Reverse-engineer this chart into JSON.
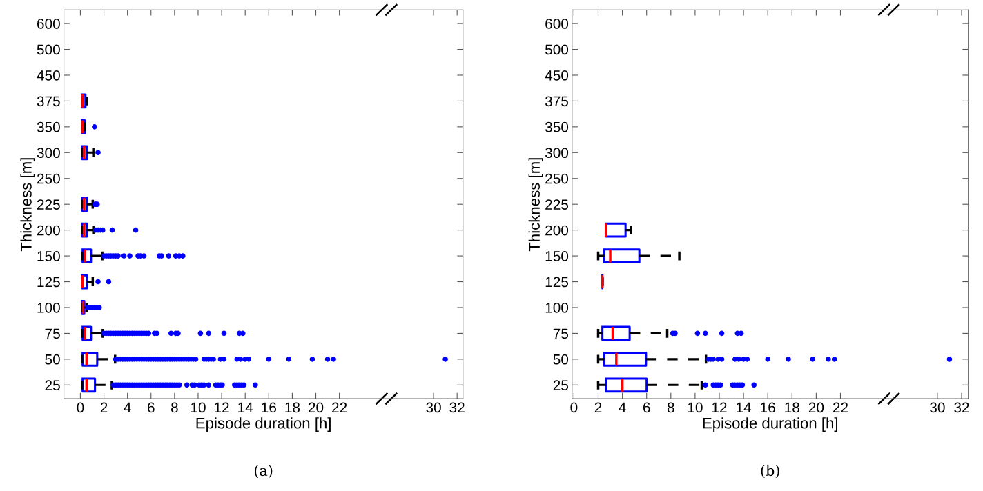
{
  "chart_data": [
    {
      "type": "box",
      "orientation": "horizontal",
      "title": "(a)",
      "xlabel": "Episode duration [h]",
      "ylabel": "Thickness [m]",
      "categories": [
        "600",
        "500",
        "450",
        "375",
        "350",
        "300",
        "250",
        "225",
        "200",
        "150",
        "125",
        "100",
        "75",
        "50",
        "25"
      ],
      "xlim": [
        -1.4,
        32.5
      ],
      "xticks": [
        0,
        2,
        4,
        6,
        8,
        10,
        12,
        14,
        16,
        18,
        20,
        22,
        30,
        32
      ],
      "marker": "circle",
      "line_style": "dashed",
      "series": [
        {
          "color": "#0000ff",
          "boxes": [
            null,
            null,
            null,
            {
              "low": 0.14,
              "q1": 0.14,
              "median": 0.2,
              "q3": 0.43,
              "high": 0.57
            },
            {
              "low": 0.14,
              "q1": 0.14,
              "median": 0.2,
              "q3": 0.38,
              "high": 0.38,
              "outliers": [
                1.2
              ]
            },
            {
              "low": 0.14,
              "q1": 0.14,
              "median": 0.33,
              "q3": 0.57,
              "high": 1.1,
              "outliers": [
                1.5
              ]
            },
            null,
            {
              "low": 0.14,
              "q1": 0.14,
              "median": 0.33,
              "q3": 0.57,
              "high": 1.05,
              "outliers": [
                1.24,
                1.33,
                1.43
              ]
            },
            {
              "low": 0.14,
              "q1": 0.14,
              "median": 0.33,
              "q3": 0.57,
              "high": 1.1,
              "outliers": [
                1.3,
                1.5,
                1.7,
                1.9,
                2.7,
                4.7
              ]
            },
            {
              "low": 0.14,
              "q1": 0.19,
              "median": 0.38,
              "q3": 0.9,
              "high": 1.86,
              "outliers": [
                2.0,
                2.2,
                2.4,
                2.6,
                2.8,
                3.0,
                3.2,
                3.7,
                4.2,
                4.9,
                5.1,
                5.4,
                6.7,
                6.9,
                7.5,
                8.1,
                8.4,
                8.7
              ]
            },
            {
              "low": 0.14,
              "q1": 0.14,
              "median": 0.19,
              "q3": 0.57,
              "high": 1.05,
              "outliers": [
                1.5,
                2.4
              ]
            },
            {
              "low": 0.14,
              "q1": 0.14,
              "median": 0.24,
              "q3": 0.33,
              "high": 0.52,
              "outliers": [
                0.6,
                0.8,
                1.0,
                1.2,
                1.4,
                1.6
              ]
            },
            {
              "low": 0.14,
              "q1": 0.19,
              "median": 0.38,
              "q3": 0.9,
              "high": 1.9,
              "outliers": [
                2.0,
                2.2,
                2.4,
                2.6,
                2.8,
                3.0,
                3.2,
                3.4,
                3.6,
                3.8,
                4.0,
                4.2,
                4.4,
                4.6,
                4.8,
                5.0,
                5.2,
                5.4,
                5.6,
                5.8,
                6.3,
                6.5,
                7.7,
                8.1,
                8.3,
                10.2,
                10.9,
                12.2,
                13.5,
                13.8
              ]
            },
            {
              "low": 0.14,
              "q1": 0.19,
              "median": 0.52,
              "q3": 1.43,
              "high": 2.95,
              "outliers": [
                3.0,
                3.2,
                3.4,
                3.6,
                3.8,
                4.0,
                4.2,
                4.4,
                4.6,
                4.8,
                5.0,
                5.2,
                5.4,
                5.6,
                5.8,
                6.0,
                6.2,
                6.4,
                6.6,
                6.8,
                7.0,
                7.2,
                7.4,
                7.6,
                7.8,
                8.0,
                8.2,
                8.4,
                8.6,
                8.8,
                9.0,
                9.2,
                9.4,
                9.6,
                9.8,
                10.5,
                10.7,
                10.9,
                11.1,
                11.3,
                11.9,
                12.2,
                13.3,
                13.6,
                14.0,
                14.3,
                16.0,
                17.7,
                19.7,
                21.0,
                21.5,
                31.0
              ]
            },
            {
              "low": 0.14,
              "q1": 0.19,
              "median": 0.52,
              "q3": 1.24,
              "high": 2.67,
              "outliers": [
                2.8,
                3.0,
                3.2,
                3.4,
                3.6,
                3.8,
                4.0,
                4.2,
                4.4,
                4.6,
                4.8,
                5.0,
                5.2,
                5.4,
                5.6,
                5.8,
                6.0,
                6.2,
                6.4,
                6.6,
                6.8,
                7.0,
                7.2,
                7.4,
                7.6,
                7.8,
                8.0,
                8.2,
                8.4,
                9.05,
                9.5,
                9.7,
                10.1,
                10.3,
                10.5,
                10.9,
                11.5,
                11.7,
                11.9,
                12.05,
                13.1,
                13.3,
                13.5,
                13.7,
                13.9,
                14.86
              ]
            }
          ]
        }
      ]
    },
    {
      "type": "box",
      "orientation": "horizontal",
      "title": "(b)",
      "xlabel": "Episode duration [h]",
      "ylabel": "Thickness [m]",
      "categories": [
        "600",
        "500",
        "450",
        "375",
        "350",
        "300",
        "250",
        "225",
        "200",
        "150",
        "125",
        "100",
        "75",
        "50",
        "25"
      ],
      "xlim": [
        -0.15,
        32.55
      ],
      "xticks": [
        0,
        2,
        4,
        6,
        8,
        10,
        12,
        14,
        16,
        18,
        20,
        22,
        30,
        32
      ],
      "marker": "circle",
      "line_style": "dashed",
      "series": [
        {
          "color": "#0000ff",
          "boxes": [
            null,
            null,
            null,
            null,
            null,
            null,
            null,
            null,
            {
              "low": 2.65,
              "q1": 2.65,
              "median": 2.65,
              "q3": 4.26,
              "high": 4.7
            },
            {
              "low": 2.0,
              "q1": 2.5,
              "median": 3.0,
              "q3": 5.4,
              "high": 8.7
            },
            {
              "low": 2.35,
              "q1": 2.35,
              "median": 2.35,
              "q3": 2.35,
              "high": 2.35
            },
            null,
            {
              "low": 2.0,
              "q1": 2.35,
              "median": 3.2,
              "q3": 4.6,
              "high": 7.7,
              "outliers": [
                8.15,
                8.35,
                10.2,
                10.85,
                12.2,
                13.5,
                13.8
              ]
            },
            {
              "low": 2.0,
              "q1": 2.5,
              "median": 3.5,
              "q3": 5.95,
              "high": 10.9,
              "outliers": [
                11.1,
                11.3,
                11.5,
                11.9,
                12.2,
                13.3,
                13.6,
                14.0,
                14.3,
                16.0,
                17.7,
                19.7,
                21.0,
                21.5,
                31.0
              ]
            },
            {
              "low": 2.0,
              "q1": 2.65,
              "median": 4.0,
              "q3": 6.0,
              "high": 10.55,
              "outliers": [
                10.85,
                11.5,
                11.7,
                11.9,
                12.1,
                13.1,
                13.3,
                13.5,
                13.7,
                13.9,
                14.86
              ]
            }
          ]
        }
      ]
    }
  ]
}
